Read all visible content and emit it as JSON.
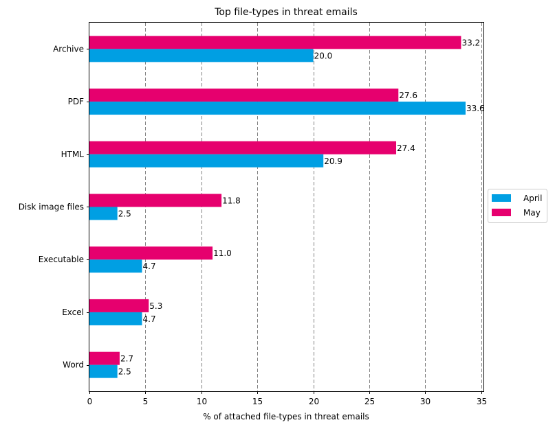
{
  "chart_data": {
    "type": "bar",
    "orientation": "horizontal",
    "title": "Top file-types in threat emails",
    "xlabel": "% of attached file-types in threat emails",
    "ylabel": "",
    "xlim": [
      0,
      35.2
    ],
    "xticks": [
      0,
      5,
      10,
      15,
      20,
      25,
      30,
      35
    ],
    "grid": "vertical dashed",
    "categories": [
      "Archive",
      "PDF",
      "HTML",
      "Disk image files",
      "Executable",
      "Excel",
      "Word"
    ],
    "series": [
      {
        "name": "April",
        "color": "#009fe3",
        "values": [
          20.0,
          33.6,
          20.9,
          2.5,
          4.7,
          4.7,
          2.5
        ],
        "labels": [
          "20.0",
          "33.6",
          "20.9",
          "2.5",
          "4.7",
          "4.7",
          "2.5"
        ]
      },
      {
        "name": "May",
        "color": "#e6006e",
        "values": [
          33.2,
          27.6,
          27.4,
          11.8,
          11.0,
          5.3,
          2.7
        ],
        "labels": [
          "33.2",
          "27.6",
          "27.4",
          "11.8",
          "11.0",
          "5.3",
          "2.7"
        ]
      }
    ],
    "legend": {
      "placement": "right-center",
      "entries": [
        "April",
        "May"
      ]
    }
  }
}
